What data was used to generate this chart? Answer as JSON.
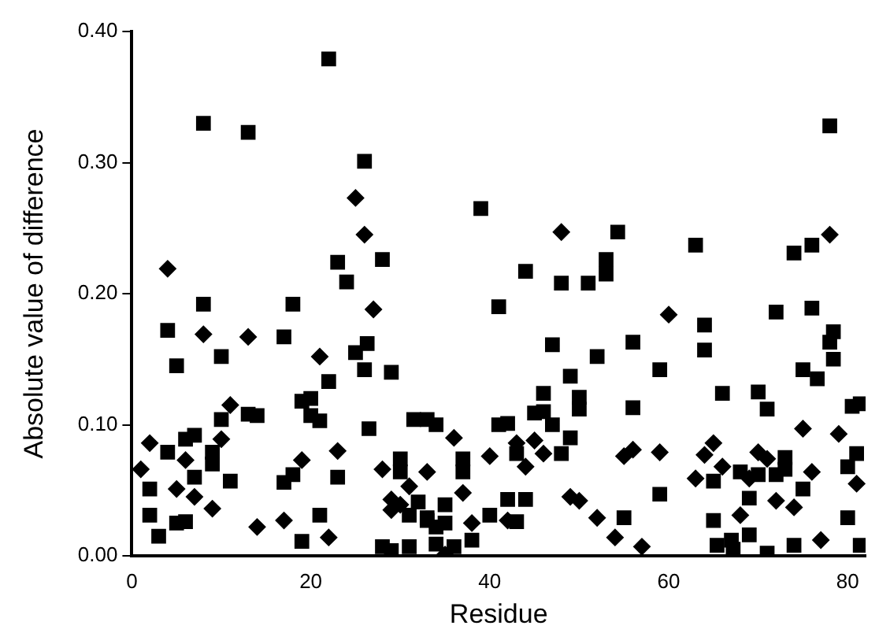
{
  "chart_data": {
    "type": "scatter",
    "xlabel": "Residue",
    "ylabel": "Absolute value of difference",
    "xlim": [
      0,
      82
    ],
    "xticks": [
      0,
      20,
      40,
      60,
      80
    ],
    "ylim": [
      0,
      0.4
    ],
    "yticks": [
      {
        "value": 0,
        "label": "0.00"
      },
      {
        "value": 0.1,
        "label": "0.10"
      },
      {
        "value": 0.2,
        "label": "0.20"
      },
      {
        "value": 0.3,
        "label": "0.30"
      },
      {
        "value": 0.4,
        "label": "0.40"
      }
    ],
    "grid": false,
    "legend": false,
    "series": [
      {
        "color": "#000000",
        "marker": "diamond",
        "x": [
          25,
          26,
          4,
          27,
          8,
          13,
          21,
          11,
          2,
          10,
          23,
          6,
          19,
          1,
          5,
          7,
          9,
          17,
          14,
          22,
          48,
          36,
          43,
          45,
          46,
          40,
          44,
          28,
          33,
          31,
          37,
          29,
          30,
          29,
          49,
          50,
          38,
          42,
          52,
          35,
          54,
          57,
          60,
          75,
          79,
          55,
          56,
          59,
          65,
          64,
          70,
          71,
          76,
          66,
          63,
          69,
          81,
          72,
          74,
          68,
          77,
          78
        ],
        "values": [
          0.273,
          0.245,
          0.219,
          0.188,
          0.169,
          0.167,
          0.152,
          0.115,
          0.086,
          0.089,
          0.08,
          0.073,
          0.073,
          0.066,
          0.051,
          0.045,
          0.036,
          0.027,
          0.022,
          0.014,
          0.247,
          0.09,
          0.086,
          0.088,
          0.078,
          0.076,
          0.068,
          0.066,
          0.064,
          0.053,
          0.048,
          0.043,
          0.039,
          0.035,
          0.045,
          0.042,
          0.025,
          0.027,
          0.029,
          0.001,
          0.014,
          0.007,
          0.184,
          0.097,
          0.093,
          0.076,
          0.081,
          0.079,
          0.086,
          0.077,
          0.079,
          0.074,
          0.064,
          0.068,
          0.059,
          0.059,
          0.055,
          0.042,
          0.037,
          0.031,
          0.012,
          0.245
        ]
      },
      {
        "color": "#000000",
        "marker": "square",
        "x": [
          22,
          8,
          13,
          26,
          23,
          24,
          8,
          18,
          4,
          17,
          5,
          10,
          25,
          26.3,
          26,
          22,
          19,
          20,
          20,
          21,
          10,
          13,
          14,
          26.5,
          7,
          6,
          4,
          9,
          9,
          7,
          18,
          17,
          11,
          23,
          2,
          2,
          5,
          6,
          21,
          3,
          19,
          28,
          29,
          31,
          34,
          36,
          38,
          33,
          34,
          43,
          39,
          54.3,
          28,
          53,
          53,
          51,
          48,
          44,
          41,
          47,
          52,
          29,
          49,
          46,
          50,
          50,
          31.5,
          33,
          34,
          41,
          42,
          45,
          46,
          47,
          49,
          43,
          48,
          30,
          30,
          37,
          37,
          32,
          35,
          42,
          44,
          40,
          33,
          31,
          35,
          55,
          65,
          65.4,
          67,
          69,
          67.2,
          71,
          74,
          80,
          81.4,
          78,
          76,
          74,
          63,
          64,
          72,
          76,
          78.4,
          78,
          56,
          64,
          59,
          78.4,
          75,
          76.6,
          66,
          70,
          71,
          56,
          80.5,
          81.4,
          73,
          73,
          81,
          80,
          68,
          70,
          72,
          65,
          75,
          59,
          69
        ],
        "values": [
          0.379,
          0.33,
          0.323,
          0.301,
          0.224,
          0.209,
          0.192,
          0.192,
          0.172,
          0.167,
          0.145,
          0.152,
          0.155,
          0.162,
          0.142,
          0.133,
          0.118,
          0.12,
          0.107,
          0.103,
          0.104,
          0.108,
          0.107,
          0.097,
          0.092,
          0.089,
          0.079,
          0.079,
          0.07,
          0.06,
          0.062,
          0.056,
          0.057,
          0.06,
          0.051,
          0.031,
          0.025,
          0.026,
          0.031,
          0.015,
          0.011,
          0.007,
          0.004,
          0.007,
          0.009,
          0.007,
          0.012,
          0.027,
          0.022,
          0.026,
          0.265,
          0.247,
          0.226,
          0.226,
          0.215,
          0.208,
          0.208,
          0.217,
          0.19,
          0.161,
          0.152,
          0.14,
          0.137,
          0.124,
          0.121,
          0.112,
          0.104,
          0.104,
          0.1,
          0.1,
          0.101,
          0.109,
          0.11,
          0.1,
          0.09,
          0.078,
          0.078,
          0.074,
          0.064,
          0.074,
          0.064,
          0.041,
          0.039,
          0.043,
          0.043,
          0.031,
          0.029,
          0.031,
          0.025,
          0.029,
          0.027,
          0.008,
          0.012,
          0.016,
          0.005,
          0.002,
          0.008,
          0.029,
          0.008,
          0.328,
          0.237,
          0.231,
          0.237,
          0.176,
          0.186,
          0.189,
          0.171,
          0.163,
          0.163,
          0.157,
          0.142,
          0.15,
          0.142,
          0.135,
          0.124,
          0.125,
          0.112,
          0.113,
          0.114,
          0.116,
          0.075,
          0.066,
          0.078,
          0.068,
          0.064,
          0.062,
          0.062,
          0.057,
          0.051,
          0.047,
          0.044
        ]
      }
    ]
  }
}
